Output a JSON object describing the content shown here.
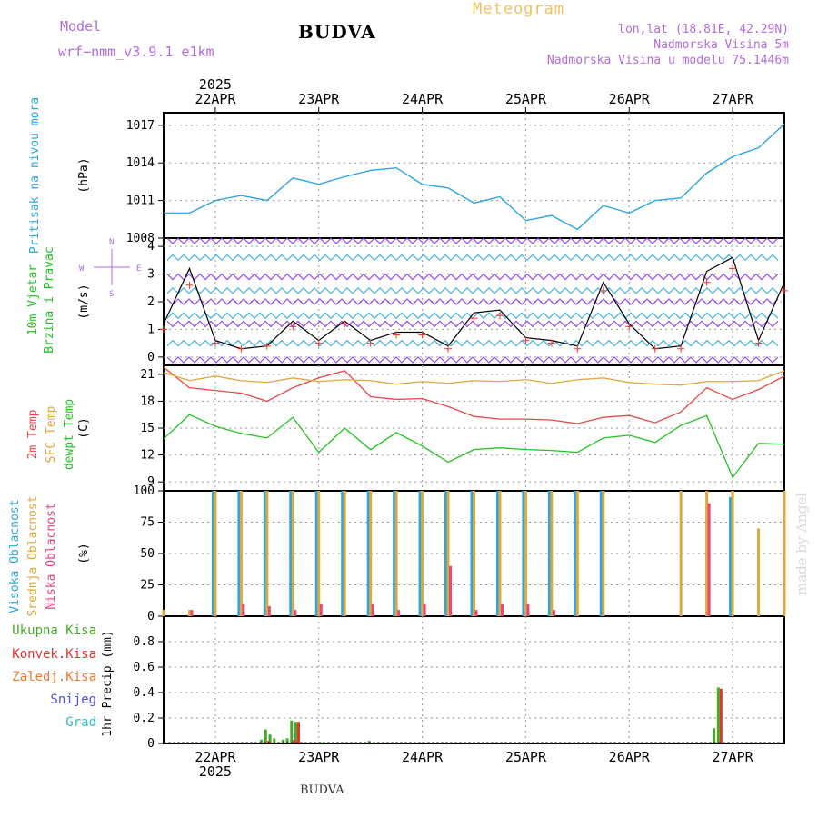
{
  "header": {
    "model_label": "Model",
    "model_name": "wrf−nmm_v3.9.1 e1km",
    "location": "BUDVA",
    "product": "Meteogram",
    "lonlat": "lon,lat (18.81E, 42.29N)",
    "elevation": "Nadmorska Visina 5m",
    "model_elevation": "Nadmorska Visina u modelu 75.1446m",
    "watermark": "made by Angel",
    "footer_location": "BUDVA"
  },
  "colors": {
    "pressure": "#2aa6e6",
    "temp2m": "#e84848",
    "sfc_temp": "#e0a838",
    "dewpt": "#22c422",
    "wind_speed": "#000000",
    "gust": "#ff3030",
    "high_cloud": "#2aa6e6",
    "mid_cloud": "#e0a838",
    "low_cloud": "#e84878",
    "total_precip": "#44aa22",
    "conv_precip": "#e83030",
    "frozen_precip": "#f07830",
    "snow": "#5050e0",
    "hail": "#30c0c0"
  },
  "time_axis": {
    "top_labels": [
      "22APR",
      "23APR",
      "24APR",
      "25APR",
      "26APR",
      "27APR"
    ],
    "year": "2025",
    "start": "2025-04-21 12:00",
    "end": "2025-04-27 12:00"
  },
  "chart_data": [
    {
      "type": "line",
      "name": "pressure",
      "ylabel_lines": [
        "Pritisak na nivou mora"
      ],
      "unit": "(hPa)",
      "ylim": [
        1008,
        1018
      ],
      "ticks": [
        1008,
        1011,
        1014,
        1017
      ],
      "grid": true,
      "series": [
        {
          "name": "Pritisak na nivou mora",
          "x": [
            "21APR 12",
            "21APR 18",
            "22APR 00",
            "22APR 06",
            "22APR 12",
            "22APR 18",
            "23APR 00",
            "23APR 06",
            "23APR 12",
            "23APR 18",
            "24APR 00",
            "24APR 06",
            "24APR 12",
            "24APR 18",
            "25APR 00",
            "25APR 06",
            "25APR 12",
            "25APR 18",
            "26APR 00",
            "26APR 06",
            "26APR 12",
            "26APR 18",
            "27APR 00",
            "27APR 06",
            "27APR 12"
          ],
          "values": [
            1010.0,
            1010.0,
            1011.0,
            1011.4,
            1011.0,
            1012.8,
            1012.3,
            1012.9,
            1013.4,
            1013.6,
            1012.3,
            1012.0,
            1010.8,
            1011.3,
            1009.4,
            1009.8,
            1008.7,
            1010.6,
            1010.0,
            1011.0,
            1011.2,
            1013.2,
            1014.5,
            1015.2,
            1017.1
          ]
        }
      ]
    },
    {
      "type": "line",
      "name": "wind",
      "ylabel_lines": [
        "10m Vjetar",
        "Brzina i Pravac"
      ],
      "unit": "(m/s)",
      "compass": {
        "N": "N",
        "S": "S",
        "E": "E",
        "W": "W"
      },
      "ylim": [
        -0.3,
        4.3
      ],
      "ticks": [
        0,
        1,
        2,
        3,
        4
      ],
      "grid": true,
      "series": [
        {
          "name": "speed",
          "x": [
            "21APR 12",
            "21APR 18",
            "22APR 00",
            "22APR 06",
            "22APR 12",
            "22APR 18",
            "23APR 00",
            "23APR 06",
            "23APR 12",
            "23APR 18",
            "24APR 00",
            "24APR 06",
            "24APR 12",
            "24APR 18",
            "25APR 00",
            "25APR 06",
            "25APR 12",
            "25APR 18",
            "26APR 00",
            "26APR 06",
            "26APR 12",
            "26APR 18",
            "27APR 00",
            "27APR 06",
            "27APR 12"
          ],
          "values": [
            1.2,
            3.2,
            0.6,
            0.3,
            0.4,
            1.3,
            0.6,
            1.3,
            0.6,
            0.9,
            0.9,
            0.4,
            1.6,
            1.7,
            0.7,
            0.6,
            0.4,
            2.7,
            1.2,
            0.3,
            0.4,
            3.1,
            3.6,
            0.6,
            2.7
          ]
        },
        {
          "name": "gust",
          "x": [
            "21APR 12",
            "21APR 18",
            "22APR 00",
            "22APR 06",
            "22APR 12",
            "22APR 18",
            "23APR 00",
            "23APR 06",
            "23APR 12",
            "23APR 18",
            "24APR 00",
            "24APR 06",
            "24APR 12",
            "24APR 18",
            "25APR 00",
            "25APR 06",
            "25APR 12",
            "25APR 18",
            "26APR 00",
            "26APR 06",
            "26APR 12",
            "26APR 18",
            "27APR 00",
            "27APR 06",
            "27APR 12"
          ],
          "values": [
            1.0,
            2.6,
            0.5,
            0.3,
            0.4,
            1.1,
            0.5,
            1.2,
            0.5,
            0.8,
            0.8,
            0.3,
            1.4,
            1.5,
            0.6,
            0.5,
            0.3,
            2.4,
            1.1,
            0.3,
            0.3,
            2.7,
            3.2,
            0.5,
            2.4
          ]
        }
      ]
    },
    {
      "type": "line",
      "name": "temperature",
      "ylabel_lines": [
        "2m Temp",
        "SFC Temp",
        "dewpt Temp"
      ],
      "unit": "(C)",
      "ylim": [
        8,
        22
      ],
      "ticks": [
        9,
        12,
        15,
        18,
        21
      ],
      "grid": true,
      "series": [
        {
          "name": "2m Temp",
          "x": [
            "21APR 12",
            "21APR 18",
            "22APR 00",
            "22APR 06",
            "22APR 12",
            "22APR 18",
            "23APR 00",
            "23APR 06",
            "23APR 12",
            "23APR 18",
            "24APR 00",
            "24APR 06",
            "24APR 12",
            "24APR 18",
            "25APR 00",
            "25APR 06",
            "25APR 12",
            "25APR 18",
            "26APR 00",
            "26APR 06",
            "26APR 12",
            "26APR 18",
            "27APR 00",
            "27APR 06",
            "27APR 12"
          ],
          "values": [
            21.8,
            19.5,
            19.2,
            18.9,
            18.0,
            19.5,
            20.6,
            21.4,
            18.5,
            18.2,
            18.3,
            17.4,
            16.3,
            16.0,
            16.0,
            15.9,
            15.5,
            16.2,
            16.4,
            15.6,
            16.8,
            19.5,
            18.2,
            19.3,
            20.8
          ]
        },
        {
          "name": "SFC Temp",
          "x": [
            "21APR 12",
            "21APR 18",
            "22APR 00",
            "22APR 06",
            "22APR 12",
            "22APR 18",
            "23APR 00",
            "23APR 06",
            "23APR 12",
            "23APR 18",
            "24APR 00",
            "24APR 06",
            "24APR 12",
            "24APR 18",
            "25APR 00",
            "25APR 06",
            "25APR 12",
            "25APR 18",
            "26APR 00",
            "26APR 06",
            "26APR 12",
            "26APR 18",
            "27APR 00",
            "27APR 06",
            "27APR 12"
          ],
          "values": [
            21.2,
            20.3,
            20.8,
            20.3,
            20.1,
            20.6,
            20.2,
            20.4,
            20.3,
            19.9,
            20.2,
            20.0,
            20.3,
            20.2,
            20.4,
            20.0,
            20.4,
            20.6,
            20.1,
            19.9,
            19.8,
            20.2,
            20.2,
            20.3,
            21.4
          ]
        },
        {
          "name": "dewpt Temp",
          "x": [
            "21APR 12",
            "21APR 18",
            "22APR 00",
            "22APR 06",
            "22APR 12",
            "22APR 18",
            "23APR 00",
            "23APR 06",
            "23APR 12",
            "23APR 18",
            "24APR 00",
            "24APR 06",
            "24APR 12",
            "24APR 18",
            "25APR 00",
            "25APR 06",
            "25APR 12",
            "25APR 18",
            "26APR 00",
            "26APR 06",
            "26APR 12",
            "26APR 18",
            "27APR 00",
            "27APR 06",
            "27APR 12"
          ],
          "values": [
            13.8,
            16.5,
            15.2,
            14.4,
            13.9,
            16.2,
            12.3,
            15.0,
            12.6,
            14.5,
            13.0,
            11.2,
            12.6,
            12.8,
            12.6,
            12.5,
            12.3,
            13.9,
            14.2,
            13.4,
            15.3,
            16.4,
            9.5,
            13.3,
            13.2
          ]
        }
      ]
    },
    {
      "type": "bar",
      "name": "cloud",
      "ylabel_lines": [
        "Visoka Oblacnost",
        "Srednja Oblacnost",
        "Niska Oblacnost"
      ],
      "unit": "(%)",
      "ylim": [
        0,
        100
      ],
      "ticks": [
        0,
        25,
        50,
        75,
        100
      ],
      "grid": true,
      "series": [
        {
          "name": "Visoka Oblacnost",
          "x": [
            "21APR 12",
            "21APR 18",
            "22APR 00",
            "22APR 06",
            "22APR 12",
            "22APR 18",
            "23APR 00",
            "23APR 06",
            "23APR 12",
            "23APR 18",
            "24APR 00",
            "24APR 06",
            "24APR 12",
            "24APR 18",
            "25APR 00",
            "25APR 06",
            "25APR 12",
            "25APR 18",
            "26APR 00",
            "26APR 06",
            "26APR 12",
            "26APR 18",
            "27APR 00",
            "27APR 06",
            "27APR 12"
          ],
          "values": [
            0,
            0,
            100,
            100,
            100,
            100,
            100,
            100,
            100,
            100,
            100,
            100,
            100,
            100,
            100,
            100,
            100,
            100,
            0,
            0,
            0,
            0,
            95,
            0,
            0
          ]
        },
        {
          "name": "Srednja Oblacnost",
          "x": [
            "21APR 12",
            "21APR 18",
            "22APR 00",
            "22APR 06",
            "22APR 12",
            "22APR 18",
            "23APR 00",
            "23APR 06",
            "23APR 12",
            "23APR 18",
            "24APR 00",
            "24APR 06",
            "24APR 12",
            "24APR 18",
            "25APR 00",
            "25APR 06",
            "25APR 12",
            "25APR 18",
            "26APR 00",
            "26APR 06",
            "26APR 12",
            "26APR 18",
            "27APR 00",
            "27APR 06",
            "27APR 12"
          ],
          "values": [
            5,
            5,
            100,
            100,
            100,
            100,
            100,
            100,
            100,
            100,
            100,
            100,
            100,
            100,
            100,
            100,
            100,
            100,
            0,
            0,
            100,
            100,
            100,
            70,
            100
          ]
        },
        {
          "name": "Niska Oblacnost",
          "x": [
            "21APR 12",
            "21APR 18",
            "22APR 00",
            "22APR 06",
            "22APR 12",
            "22APR 18",
            "23APR 00",
            "23APR 06",
            "23APR 12",
            "23APR 18",
            "24APR 00",
            "24APR 06",
            "24APR 12",
            "24APR 18",
            "25APR 00",
            "25APR 06",
            "25APR 12",
            "25APR 18",
            "26APR 00",
            "26APR 06",
            "26APR 12",
            "26APR 18",
            "27APR 00",
            "27APR 06",
            "27APR 12"
          ],
          "values": [
            0,
            5,
            0,
            10,
            8,
            5,
            10,
            0,
            10,
            5,
            10,
            40,
            5,
            10,
            10,
            5,
            0,
            0,
            0,
            0,
            0,
            90,
            0,
            0,
            0
          ]
        }
      ]
    },
    {
      "type": "bar",
      "name": "precipitation",
      "ylabel_lines": [
        "1hr Precip (mm)"
      ],
      "legend": [
        "Ukupna Kisa",
        "Konvek.Kisa",
        "Zaledj.Kisa",
        "Snijeg",
        "Grad"
      ],
      "ylim": [
        0,
        1.0
      ],
      "ticks": [
        0,
        0.2,
        0.4,
        0.6,
        0.8
      ],
      "grid": true,
      "series": [
        {
          "name": "Ukupna Kisa",
          "x": [
            "22APR 01",
            "22APR 11",
            "22APR 12",
            "22APR 13",
            "22APR 14",
            "22APR 16",
            "22APR 17",
            "22APR 18",
            "22APR 19",
            "23APR 01",
            "23APR 12",
            "26APR 20",
            "26APR 21"
          ],
          "values": [
            0.01,
            0.03,
            0.11,
            0.07,
            0.04,
            0.03,
            0.04,
            0.18,
            0.17,
            0.01,
            0.02,
            0.12,
            0.44
          ]
        },
        {
          "name": "Konvek.Kisa",
          "x": [
            "22APR 12",
            "22APR 18",
            "22APR 19",
            "26APR 21"
          ],
          "values": [
            0.02,
            0.03,
            0.17,
            0.43
          ]
        }
      ]
    }
  ]
}
